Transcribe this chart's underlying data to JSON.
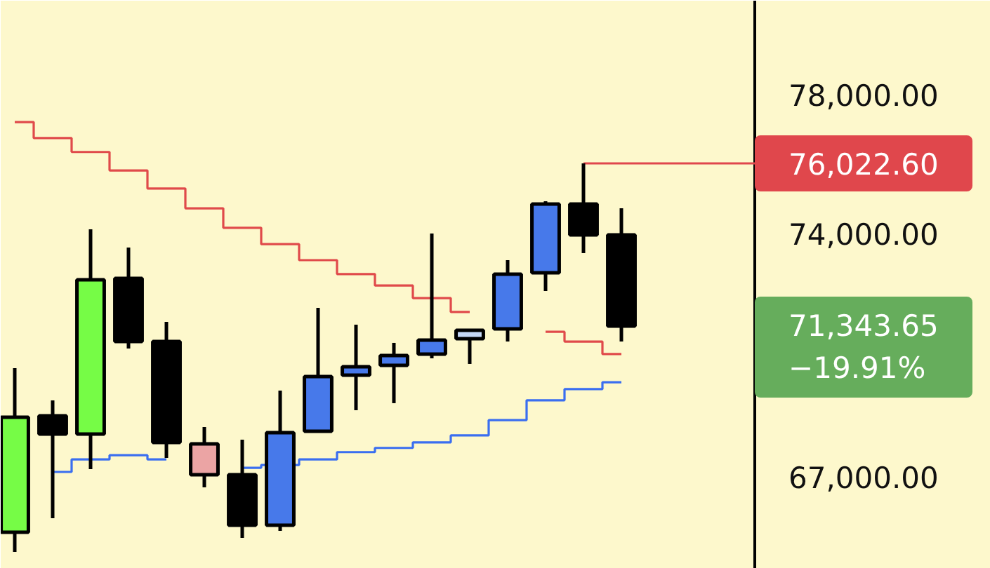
{
  "chart_data": {
    "type": "candlestick",
    "categories": [
      null,
      null,
      null,
      null,
      null,
      null,
      null,
      null,
      null,
      null,
      null,
      null,
      null,
      null,
      null,
      null,
      null
    ],
    "ohlc": [
      [
        65416,
        70135,
        64852,
        68723
      ],
      [
        68764,
        69207,
        65820,
        68239
      ],
      [
        68239,
        74127,
        67231,
        72676
      ],
      [
        72716,
        73603,
        70699,
        70901
      ],
      [
        70901,
        71466,
        67554,
        67997
      ],
      [
        67957,
        68441,
        66707,
        67070
      ],
      [
        67070,
        68078,
        65255,
        65618
      ],
      [
        65618,
        69490,
        65457,
        68280
      ],
      [
        68320,
        71869,
        68320,
        69893
      ],
      [
        69933,
        71385,
        68925,
        70175
      ],
      [
        70215,
        70861,
        69127,
        70498
      ],
      [
        70538,
        74006,
        70417,
        70941
      ],
      [
        70982,
        71264,
        70256,
        71224
      ],
      [
        71264,
        73240,
        70901,
        72837
      ],
      [
        72877,
        74934,
        72353,
        74853
      ],
      [
        74853,
        76022.6,
        73442,
        73966
      ],
      [
        73966,
        74732,
        70901,
        71343.65
      ]
    ],
    "colors": [
      "#76fc46",
      "#000000",
      "#76fc46",
      "#000000",
      "#000000",
      "#eba4a4",
      "#000000",
      "#4779ea",
      "#4779ea",
      "#4779ea",
      "#4779ea",
      "#4779ea",
      "#c5d8f6",
      "#4779ea",
      "#4779ea",
      "#000000",
      "#000000"
    ],
    "series": [
      {
        "type": "step",
        "color": "#e04a4a",
        "values": [
          77210,
          76750,
          76350,
          75820,
          75300,
          74730,
          74170,
          73700,
          73240,
          72840,
          72510,
          72150,
          71750,
          null,
          71180,
          70900,
          70540
        ]
      },
      {
        "type": "step",
        "color": "#3a6ef0",
        "values": [
          null,
          67150,
          67510,
          67630,
          67510,
          null,
          67270,
          67350,
          67510,
          67720,
          67840,
          68000,
          68200,
          68640,
          69210,
          69530,
          69730
        ]
      }
    ],
    "ylim": [
      64367,
      80701
    ],
    "yticks": [
      {
        "value": 78000,
        "label": "78,000.00"
      },
      {
        "value": 74000,
        "label": "74,000.00"
      },
      {
        "value": 67000,
        "label": "67,000.00"
      }
    ],
    "ref_lines": [
      {
        "axis": "y",
        "value": 76022.6,
        "label": "76,022.60",
        "color": "#e0474c"
      }
    ],
    "annotations": [
      "71,343.65\n−19.91%"
    ],
    "tick_labels": "y",
    "grid": false
  }
}
